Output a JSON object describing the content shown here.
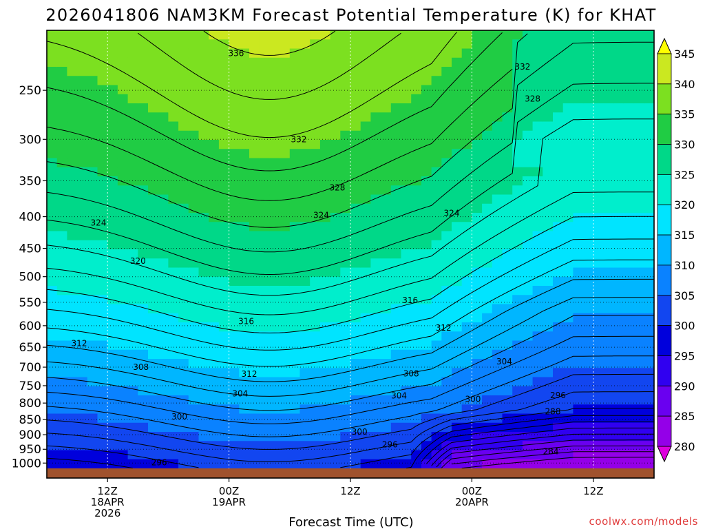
{
  "chart_data": {
    "type": "heatmap",
    "title": "2026041806 NAM3KM Forecast Potential Temperature (K) for KHAT",
    "xlabel": "Forecast Time (UTC)",
    "ylabel": "",
    "credit": "coolwx.com/models",
    "x_unit": "forecast hour",
    "xlim": [
      6,
      66
    ],
    "y_ticks": [
      250,
      300,
      350,
      400,
      450,
      500,
      550,
      600,
      650,
      700,
      750,
      800,
      850,
      900,
      950,
      1000
    ],
    "y_log_scale": true,
    "ylim": [
      1020,
      200
    ],
    "x_ticks": [
      {
        "hour": 12,
        "lines": [
          "12Z",
          "18APR",
          "2026"
        ]
      },
      {
        "hour": 24,
        "lines": [
          "00Z",
          "19APR"
        ]
      },
      {
        "hour": 36,
        "lines": [
          "12Z"
        ]
      },
      {
        "hour": 48,
        "lines": [
          "00Z",
          "20APR"
        ]
      },
      {
        "hour": 60,
        "lines": [
          "12Z"
        ]
      }
    ],
    "grid": true,
    "colorbar": {
      "levels": [
        280,
        285,
        290,
        295,
        300,
        305,
        310,
        315,
        320,
        325,
        330,
        335,
        340,
        345
      ],
      "colors": [
        "#dd00dd",
        "#9400e8",
        "#6a00f0",
        "#3000f0",
        "#0000dc",
        "#1246f0",
        "#0a82ff",
        "#00b6ff",
        "#00e4ff",
        "#00eecc",
        "#00d888",
        "#20cc44",
        "#7ce020",
        "#cbe820",
        "#ffff00"
      ]
    },
    "contour_labels": [
      {
        "value": "336",
        "hour": 24.7,
        "p": 218
      },
      {
        "value": "332",
        "hour": 53.0,
        "p": 229
      },
      {
        "value": "328",
        "hour": 54.0,
        "p": 258
      },
      {
        "value": "332",
        "hour": 30.9,
        "p": 300
      },
      {
        "value": "328",
        "hour": 34.7,
        "p": 359
      },
      {
        "value": "324",
        "hour": 11.1,
        "p": 409
      },
      {
        "value": "324",
        "hour": 33.1,
        "p": 398
      },
      {
        "value": "324",
        "hour": 46.0,
        "p": 395
      },
      {
        "value": "320",
        "hour": 15.0,
        "p": 472
      },
      {
        "value": "316",
        "hour": 41.9,
        "p": 546
      },
      {
        "value": "316",
        "hour": 25.7,
        "p": 590
      },
      {
        "value": "312",
        "hour": 45.2,
        "p": 605
      },
      {
        "value": "312",
        "hour": 9.2,
        "p": 641
      },
      {
        "value": "308",
        "hour": 15.3,
        "p": 700
      },
      {
        "value": "312",
        "hour": 26.0,
        "p": 718
      },
      {
        "value": "308",
        "hour": 42.0,
        "p": 717
      },
      {
        "value": "304",
        "hour": 51.2,
        "p": 686
      },
      {
        "value": "304",
        "hour": 25.1,
        "p": 772
      },
      {
        "value": "304",
        "hour": 40.8,
        "p": 778
      },
      {
        "value": "300",
        "hour": 48.1,
        "p": 788
      },
      {
        "value": "296",
        "hour": 56.5,
        "p": 777
      },
      {
        "value": "288",
        "hour": 56.0,
        "p": 826
      },
      {
        "value": "300",
        "hour": 19.1,
        "p": 842
      },
      {
        "value": "300",
        "hour": 36.9,
        "p": 890
      },
      {
        "value": "296",
        "hour": 39.9,
        "p": 934
      },
      {
        "value": "284",
        "hour": 55.8,
        "p": 958
      },
      {
        "value": "296",
        "hour": 17.1,
        "p": 998
      }
    ]
  }
}
